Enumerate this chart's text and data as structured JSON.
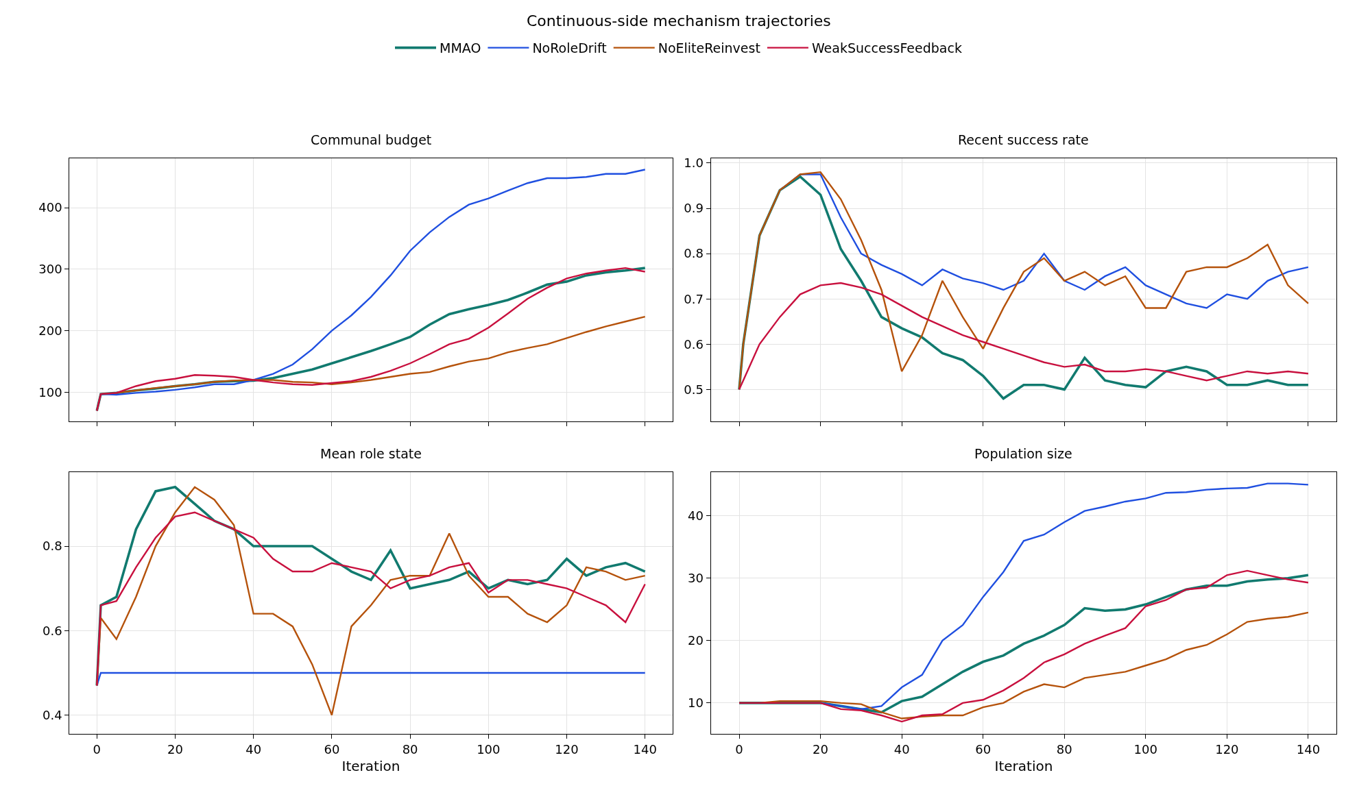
{
  "chart_data": [
    {
      "type": "line",
      "title": "Communal budget",
      "annotations": [
        "Continuous-side mechanism trajectories"
      ],
      "x": [
        0,
        1,
        5,
        10,
        15,
        20,
        25,
        30,
        35,
        40,
        45,
        50,
        55,
        60,
        65,
        70,
        75,
        80,
        85,
        90,
        95,
        100,
        105,
        110,
        115,
        120,
        125,
        130,
        135,
        140
      ],
      "xlim": [
        -7,
        147
      ],
      "xticks": [
        0,
        20,
        40,
        60,
        80,
        100,
        120,
        140
      ],
      "ylim": [
        53,
        480
      ],
      "yticks": [
        100,
        200,
        300,
        400
      ],
      "grid": true,
      "legend": "top",
      "tick_labels": "y",
      "line_style": "solid",
      "series": [
        {
          "name": "MMAO",
          "color": "#117a6f",
          "values": [
            70,
            97,
            99,
            103,
            106,
            110,
            113,
            117,
            118,
            119,
            123,
            130,
            137,
            147,
            157,
            167,
            178,
            190,
            210,
            227,
            235,
            242,
            250,
            262,
            275,
            280,
            290,
            295,
            298,
            302
          ]
        },
        {
          "name": "NoRoleDrift",
          "color": "#1f4fe0",
          "values": [
            70,
            97,
            96,
            99,
            101,
            104,
            108,
            113,
            113,
            120,
            130,
            145,
            170,
            200,
            225,
            255,
            290,
            330,
            360,
            385,
            405,
            415,
            428,
            440,
            448,
            448,
            450,
            455,
            455,
            462
          ]
        },
        {
          "name": "NoEliteReinvest",
          "color": "#b5520b",
          "values": [
            70,
            97,
            99,
            103,
            107,
            110,
            113,
            117,
            119,
            120,
            120,
            117,
            116,
            113,
            116,
            120,
            125,
            130,
            133,
            142,
            150,
            155,
            165,
            172,
            178,
            188,
            198,
            207,
            215,
            223
          ]
        },
        {
          "name": "WeakSuccessFeedback",
          "color": "#c8103e",
          "values": [
            70,
            97,
            99,
            110,
            118,
            122,
            128,
            127,
            125,
            120,
            116,
            113,
            112,
            115,
            118,
            125,
            135,
            147,
            162,
            178,
            187,
            205,
            228,
            252,
            270,
            285,
            293,
            298,
            302,
            296
          ]
        }
      ]
    },
    {
      "type": "line",
      "title": "Recent success rate",
      "x": [
        0,
        1,
        5,
        10,
        15,
        20,
        25,
        30,
        35,
        40,
        45,
        50,
        55,
        60,
        65,
        70,
        75,
        80,
        85,
        90,
        95,
        100,
        105,
        110,
        115,
        120,
        125,
        130,
        135,
        140
      ],
      "xlim": [
        -7,
        147
      ],
      "xticks": [
        0,
        20,
        40,
        60,
        80,
        100,
        120,
        140
      ],
      "ylim": [
        0.43,
        1.01
      ],
      "yticks": [
        0.5,
        0.6,
        0.7,
        0.8,
        0.9,
        {
          "value": 1.0,
          "label": "1.0"
        }
      ],
      "grid": true,
      "tick_labels": "y",
      "line_style": "solid",
      "series": [
        {
          "color": "#117a6f",
          "values": [
            0.5,
            0.6,
            0.84,
            0.94,
            0.97,
            0.93,
            0.81,
            0.74,
            0.66,
            0.635,
            0.615,
            0.58,
            0.565,
            0.53,
            0.48,
            0.51,
            0.51,
            0.5,
            0.57,
            0.52,
            0.51,
            0.505,
            0.54,
            0.55,
            0.54,
            0.51,
            0.51,
            0.52,
            0.51,
            0.51
          ]
        },
        {
          "color": "#1f4fe0",
          "values": [
            null,
            null,
            null,
            0.94,
            0.975,
            0.975,
            0.88,
            0.8,
            0.775,
            0.755,
            0.73,
            0.765,
            0.745,
            0.735,
            0.72,
            0.74,
            0.8,
            0.74,
            0.72,
            0.75,
            0.77,
            0.73,
            0.71,
            0.69,
            0.68,
            0.71,
            0.7,
            0.74,
            0.76,
            0.77
          ]
        },
        {
          "color": "#b5520b",
          "values": [
            0.5,
            0.6,
            0.84,
            0.94,
            0.975,
            0.98,
            0.92,
            0.83,
            0.72,
            0.54,
            0.62,
            0.74,
            0.66,
            0.59,
            0.68,
            0.76,
            0.79,
            0.74,
            0.76,
            0.73,
            0.75,
            0.68,
            0.68,
            0.76,
            0.77,
            0.77,
            0.79,
            0.82,
            0.73,
            0.69
          ]
        },
        {
          "color": "#c8103e",
          "values": [
            0.5,
            0.52,
            0.6,
            0.66,
            0.71,
            0.73,
            0.735,
            0.725,
            0.71,
            0.685,
            0.66,
            0.64,
            0.62,
            0.605,
            0.59,
            0.575,
            0.56,
            0.55,
            0.555,
            0.54,
            0.54,
            0.545,
            0.54,
            0.53,
            0.52,
            0.53,
            0.54,
            0.535,
            0.54,
            0.535
          ]
        }
      ]
    },
    {
      "type": "line",
      "title": "Mean role state",
      "xlabel": "Iteration",
      "x": [
        0,
        1,
        5,
        10,
        15,
        20,
        25,
        30,
        35,
        40,
        45,
        50,
        55,
        60,
        65,
        70,
        75,
        80,
        85,
        90,
        95,
        100,
        105,
        110,
        115,
        120,
        125,
        130,
        135,
        140
      ],
      "xlim": [
        -7,
        147
      ],
      "xticks": [
        0,
        20,
        40,
        60,
        80,
        100,
        120,
        140
      ],
      "ylim": [
        0.355,
        0.975
      ],
      "yticks": [
        0.4,
        0.6,
        0.8
      ],
      "grid": true,
      "line_style": "solid",
      "series": [
        {
          "color": "#117a6f",
          "values": [
            0.47,
            0.66,
            0.68,
            0.84,
            0.93,
            0.94,
            0.9,
            0.86,
            0.84,
            0.8,
            0.8,
            0.8,
            0.8,
            0.77,
            0.74,
            0.72,
            0.79,
            0.7,
            0.71,
            0.72,
            0.74,
            0.7,
            0.72,
            0.71,
            0.72,
            0.77,
            0.73,
            0.75,
            0.76,
            0.74
          ]
        },
        {
          "color": "#1f4fe0",
          "values": [
            0.47,
            0.5,
            0.5,
            0.5,
            0.5,
            0.5,
            0.5,
            0.5,
            0.5,
            0.5,
            0.5,
            0.5,
            0.5,
            0.5,
            0.5,
            0.5,
            0.5,
            0.5,
            0.5,
            0.5,
            0.5,
            0.5,
            0.5,
            0.5,
            0.5,
            0.5,
            0.5,
            0.5,
            0.5,
            0.5
          ]
        },
        {
          "color": "#b5520b",
          "values": [
            0.47,
            0.63,
            0.58,
            0.68,
            0.8,
            0.88,
            0.94,
            0.91,
            0.85,
            0.64,
            0.64,
            0.61,
            0.52,
            0.4,
            0.61,
            0.66,
            0.72,
            0.73,
            0.73,
            0.83,
            0.73,
            0.68,
            0.68,
            0.64,
            0.62,
            0.66,
            0.75,
            0.74,
            0.72,
            0.73
          ]
        },
        {
          "color": "#c8103e",
          "values": [
            0.47,
            0.66,
            0.67,
            0.75,
            0.82,
            0.87,
            0.88,
            0.86,
            0.84,
            0.82,
            0.77,
            0.74,
            0.74,
            0.76,
            0.75,
            0.74,
            0.7,
            0.72,
            0.73,
            0.75,
            0.76,
            0.69,
            0.72,
            0.72,
            0.71,
            0.7,
            0.68,
            0.66,
            0.62,
            0.71
          ]
        }
      ]
    },
    {
      "type": "line",
      "title": "Population size",
      "xlabel": "Iteration",
      "x": [
        0,
        1,
        5,
        10,
        15,
        20,
        25,
        30,
        35,
        40,
        45,
        50,
        55,
        60,
        65,
        70,
        75,
        80,
        85,
        90,
        95,
        100,
        105,
        110,
        115,
        120,
        125,
        130,
        135,
        140
      ],
      "xlim": [
        -7,
        147
      ],
      "xticks": [
        0,
        20,
        40,
        60,
        80,
        100,
        120,
        140
      ],
      "ylim": [
        5,
        47
      ],
      "yticks": [
        10,
        20,
        30,
        40
      ],
      "grid": true,
      "line_style": "solid",
      "series": [
        {
          "color": "#117a6f",
          "values": [
            10,
            10,
            10,
            10,
            10,
            10,
            9.5,
            9,
            8.5,
            10.3,
            11,
            13,
            15,
            16.6,
            17.6,
            19.5,
            20.8,
            22.5,
            25.2,
            24.8,
            25,
            25.8,
            27,
            28.2,
            28.8,
            28.8,
            29.5,
            29.8,
            30,
            30.5
          ]
        },
        {
          "color": "#1f4fe0",
          "values": [
            null,
            null,
            null,
            null,
            10,
            10,
            9.5,
            9,
            9.5,
            12.5,
            14.5,
            20,
            22.5,
            27,
            31,
            36,
            37,
            39,
            40.8,
            41.5,
            42.3,
            42.8,
            43.7,
            43.8,
            44.2,
            44.4,
            44.5,
            45.2,
            45.2,
            45
          ]
        },
        {
          "color": "#b5520b",
          "values": [
            10,
            10,
            10,
            10.3,
            10.3,
            10.3,
            10,
            9.8,
            8.5,
            7.5,
            7.8,
            8,
            8,
            9.3,
            10,
            11.8,
            13,
            12.5,
            14,
            14.5,
            15,
            16,
            17,
            18.5,
            19.3,
            21,
            23,
            23.5,
            23.8,
            24.5
          ]
        },
        {
          "color": "#c8103e",
          "values": [
            10,
            10,
            10,
            10,
            10,
            10,
            9,
            8.8,
            8,
            7,
            8,
            8.2,
            10,
            10.5,
            12,
            14,
            16.5,
            17.8,
            19.5,
            20.8,
            22,
            25.5,
            26.5,
            28.2,
            28.5,
            30.5,
            31.2,
            30.5,
            29.8,
            29.3
          ]
        }
      ]
    }
  ]
}
